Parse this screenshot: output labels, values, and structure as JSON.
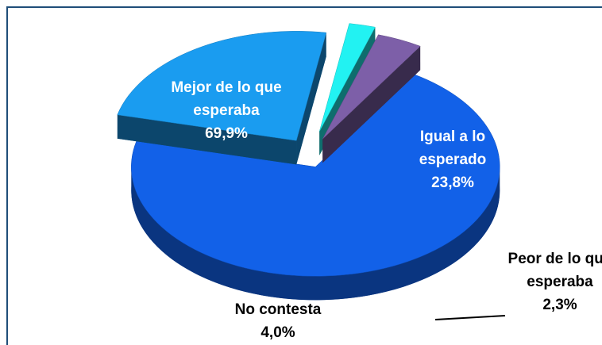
{
  "chart_data": {
    "type": "pie",
    "categories": [
      "Mejor de lo que esperaba",
      "Igual a lo esperado",
      "Peor de lo que esperaba",
      "No contesta"
    ],
    "values": [
      69.9,
      23.8,
      2.3,
      4.0
    ],
    "value_labels": [
      "69,9%",
      "23,8%",
      "2,3%",
      "4,0%"
    ],
    "colors": [
      "#1261e8",
      "#1a9cf0",
      "#22f2f2",
      "#7d5fa8"
    ]
  }
}
